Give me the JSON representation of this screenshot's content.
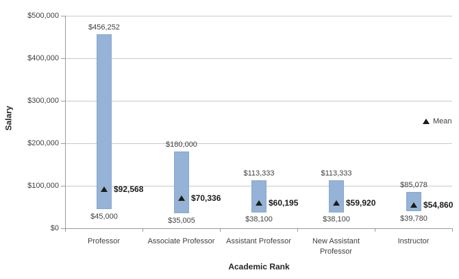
{
  "chart_data": {
    "type": "bar",
    "subtype": "floating-range-bars-with-mean-markers",
    "title": "",
    "xlabel": "Academic Rank",
    "ylabel": "Salary",
    "ylim": [
      0,
      500000
    ],
    "ytick_interval": 100000,
    "ytick_labels": [
      "$0",
      "$100,000",
      "$200,000",
      "$300,000",
      "$400,000",
      "$500,000"
    ],
    "grid": true,
    "legend_label": "Mean",
    "legend_marker": "triangle",
    "legend_position": "right-middle",
    "categories": [
      "Professor",
      "Associate Professor",
      "Assistant Professor",
      "New Assistant Professor",
      "Instructor"
    ],
    "series": [
      {
        "name": "Minimum",
        "values": [
          45000,
          35005,
          38100,
          38100,
          39780
        ],
        "labels": [
          "$45,000",
          "$35,005",
          "$38,100",
          "$38,100",
          "$39,780"
        ]
      },
      {
        "name": "Maximum",
        "values": [
          456252,
          180000,
          113333,
          113333,
          85078
        ],
        "labels": [
          "$456,252",
          "$180,000",
          "$113,333",
          "$113,333",
          "$85,078"
        ]
      },
      {
        "name": "Mean",
        "values": [
          92568,
          70336,
          60195,
          59920,
          54860
        ],
        "labels": [
          "$92,568",
          "$70,336",
          "$60,195",
          "$59,920",
          "$54,860"
        ]
      }
    ],
    "colors": {
      "bar_fill": "#95B3D7",
      "bar_border": "#89A7CF",
      "mean_marker": "#1C1C12",
      "gridline": "#C9C9C9",
      "axis_line": "#9A9A9A",
      "text": "#3F3F3F",
      "mean_label_text": "#1A1A1A",
      "title_text": "#262626",
      "background": "#FFFFFF"
    }
  }
}
